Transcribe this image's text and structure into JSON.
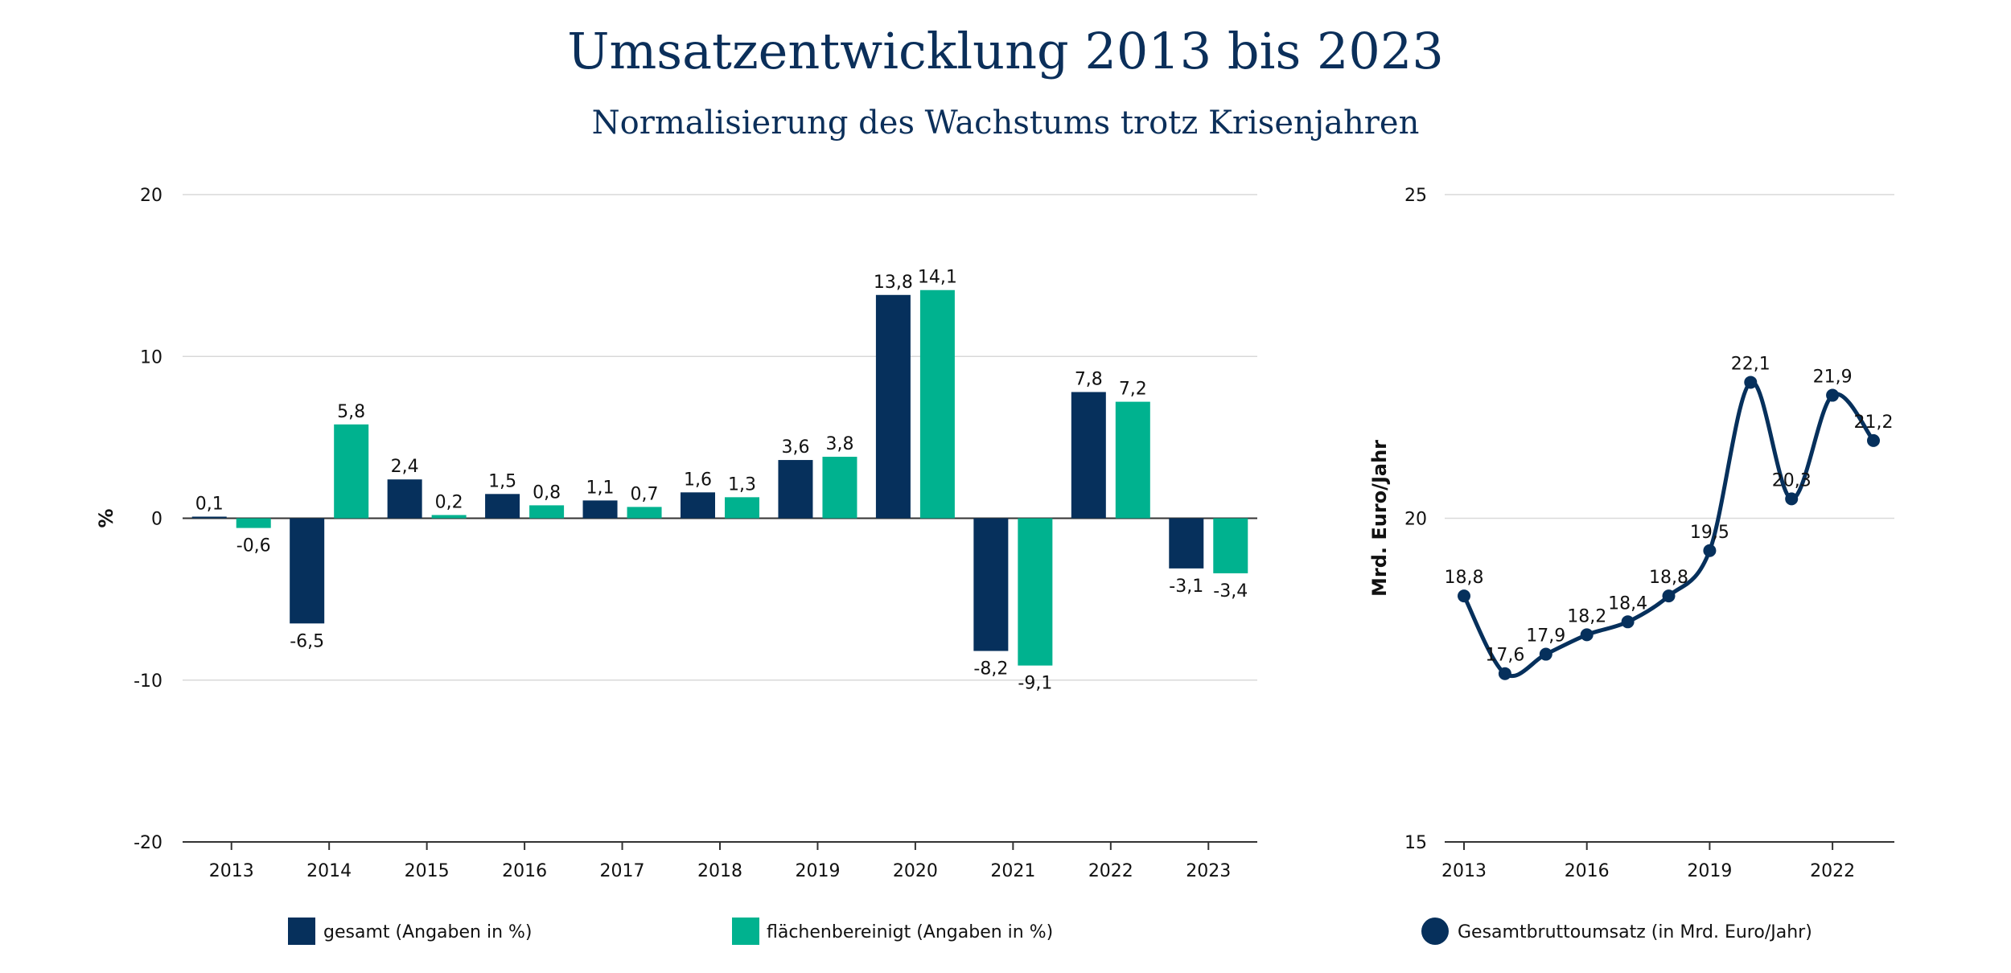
{
  "title": "Umsatzentwicklung 2013 bis 2023",
  "subtitle": "Normalisierung des Wachstums trotz Krisenjahren",
  "colors": {
    "navy": "#06305c",
    "teal": "#00b28f",
    "title": "#0b2f5a",
    "grid": "#d9d9d9"
  },
  "chart_data": [
    {
      "type": "bar",
      "ylabel": "%",
      "ylim": [
        -20,
        20
      ],
      "yticks": [
        -20,
        -10,
        0,
        10,
        20
      ],
      "grid": true,
      "legend_position": "bottom",
      "categories": [
        "2013",
        "2014",
        "2015",
        "2016",
        "2017",
        "2018",
        "2019",
        "2020",
        "2021",
        "2022",
        "2023"
      ],
      "series": [
        {
          "name": "gesamt (Angaben in %)",
          "color": "#06305c",
          "values": [
            0.1,
            -6.5,
            2.4,
            1.5,
            1.1,
            1.6,
            3.6,
            13.8,
            -8.2,
            7.8,
            -3.1
          ],
          "labels": [
            "0,1",
            "-6,5",
            "2,4",
            "1,5",
            "1,1",
            "1,6",
            "3,6",
            "13,8",
            "-8,2",
            "7,8",
            "-3,1"
          ]
        },
        {
          "name": "flächenbereinigt (Angaben in %)",
          "color": "#00b28f",
          "values": [
            -0.6,
            5.8,
            0.2,
            0.8,
            0.7,
            1.3,
            3.8,
            14.1,
            -9.1,
            7.2,
            -3.4
          ],
          "labels": [
            "-0,6",
            "5,8",
            "0,2",
            "0,8",
            "0,7",
            "1,3",
            "3,8",
            "14,1",
            "-9,1",
            "7,2",
            "-3,4"
          ]
        }
      ]
    },
    {
      "type": "line",
      "ylabel": "Mrd. Euro/Jahr",
      "ylim": [
        15,
        25
      ],
      "yticks": [
        15,
        20,
        25
      ],
      "xlim": [
        2013,
        2023
      ],
      "xticks": [
        2013,
        2016,
        2019,
        2022
      ],
      "grid": true,
      "legend_position": "bottom",
      "series": [
        {
          "name": "Gesamtbruttoumsatz (in Mrd. Euro/Jahr)",
          "color": "#06305c",
          "x": [
            2013,
            2014,
            2015,
            2016,
            2017,
            2018,
            2019,
            2020,
            2021,
            2022,
            2023
          ],
          "values": [
            18.8,
            17.6,
            17.9,
            18.2,
            18.4,
            18.8,
            19.5,
            22.1,
            20.3,
            21.9,
            21.2
          ],
          "labels": [
            "18,8",
            "17,6",
            "17,9",
            "18,2",
            "18,4",
            "18,8",
            "19,5",
            "22,1",
            "20,3",
            "21,9",
            "21,2"
          ]
        }
      ]
    }
  ]
}
